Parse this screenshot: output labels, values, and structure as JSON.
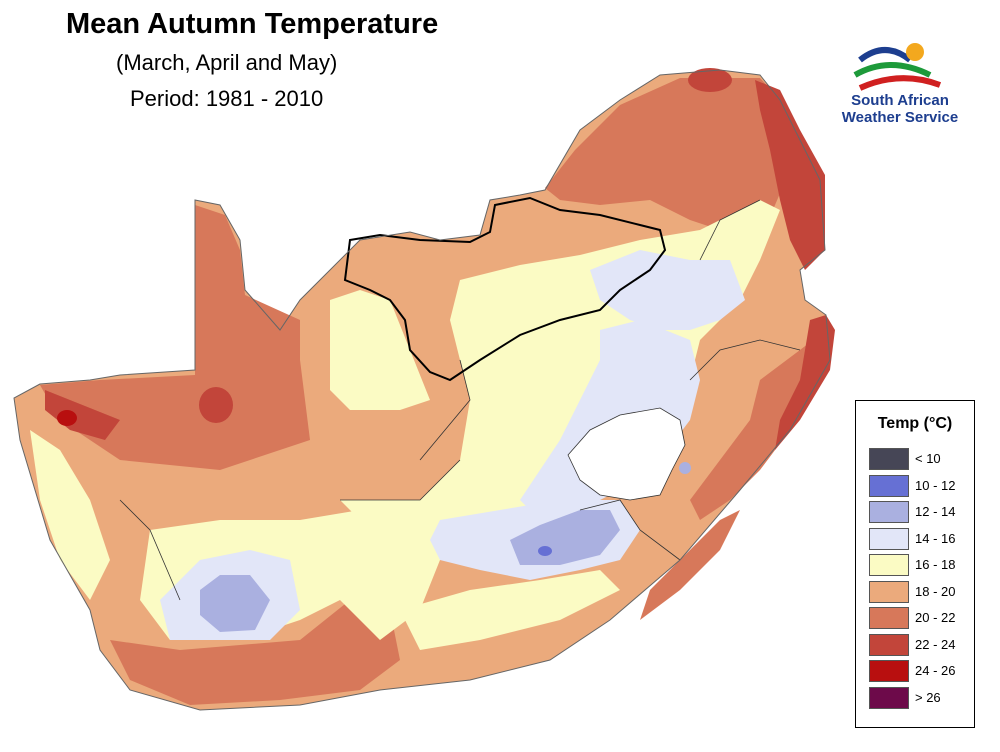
{
  "title": "Mean Autumn Temperature",
  "subtitle": "(March, April and May)",
  "period": "Period: 1981 - 2010",
  "logo": {
    "line1": "South African",
    "line2": "Weather Service",
    "registered": "®"
  },
  "legend": {
    "title": "Temp (°C)",
    "items": [
      {
        "label": "< 10",
        "color": "#464656"
      },
      {
        "label": "10 - 12",
        "color": "#6670d4"
      },
      {
        "label": "12 - 14",
        "color": "#aab0e0"
      },
      {
        "label": "14 - 16",
        "color": "#e2e6f8"
      },
      {
        "label": "16 - 18",
        "color": "#fbfbc4"
      },
      {
        "label": "18 - 20",
        "color": "#ebaa7c"
      },
      {
        "label": "20 - 22",
        "color": "#d7785a"
      },
      {
        "label": "22 - 24",
        "color": "#c2453a"
      },
      {
        "label": "24 - 26",
        "color": "#b80f0f"
      },
      {
        "label": "> 26",
        "color": "#6d0a4a"
      }
    ]
  }
}
